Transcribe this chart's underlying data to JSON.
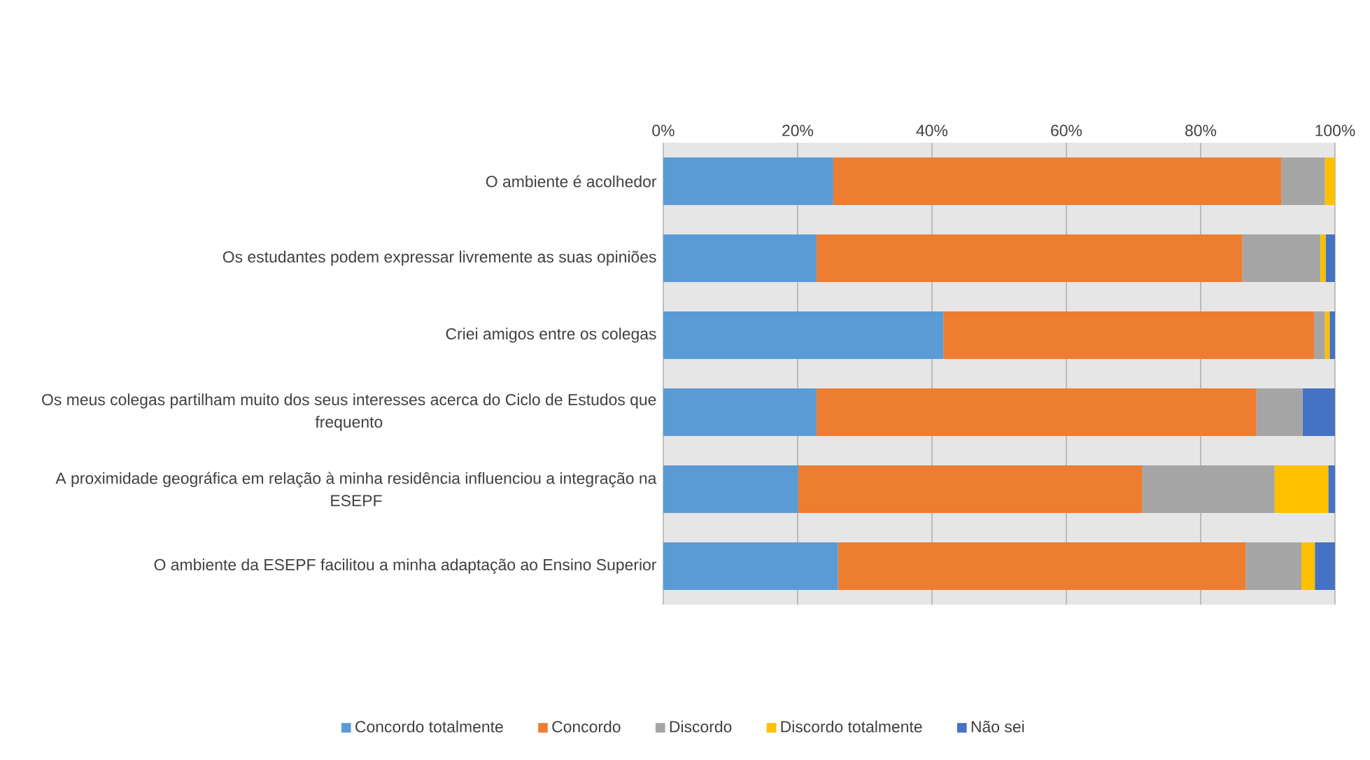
{
  "chart_data": {
    "type": "bar",
    "orientation": "horizontal",
    "stacked": true,
    "categories": [
      "O ambiente é acolhedor",
      "Os estudantes podem expressar livremente as suas opiniões",
      "Criei amigos entre os colegas",
      "Os meus colegas partilham muito dos seus interesses acerca do Ciclo de Estudos que frequento",
      "A proximidade geográfica em relação à minha residência influenciou a integração na ESEPF",
      "O ambiente da ESEPF facilitou a minha adaptação ao Ensino Superior"
    ],
    "series": [
      {
        "name": "Concordo totalmente",
        "color": "#5b9bd5",
        "values": [
          25.3,
          22.8,
          41.7,
          22.8,
          20.1,
          26
        ]
      },
      {
        "name": "Concordo",
        "color": "#ed7d31",
        "values": [
          66.7,
          63.4,
          55.2,
          65.5,
          51.2,
          60.7
        ]
      },
      {
        "name": "Discordo",
        "color": "#a5a5a5",
        "values": [
          6.5,
          11.6,
          1.6,
          6.9,
          19.7,
          8.3
        ]
      },
      {
        "name": "Discordo totalmente",
        "color": "#ffc000",
        "values": [
          1.5,
          0.8,
          0.7,
          0,
          8,
          2
        ]
      },
      {
        "name": "Não sei",
        "color": "#4472c4",
        "values": [
          0,
          1.4,
          0.8,
          4.8,
          1,
          3
        ]
      }
    ],
    "xlim": [
      0,
      100
    ],
    "xticks": [
      {
        "value": 0,
        "label": "0%"
      },
      {
        "value": 20,
        "label": "20%"
      },
      {
        "value": 40,
        "label": "40%"
      },
      {
        "value": 60,
        "label": "60%"
      },
      {
        "value": 80,
        "label": "80%"
      },
      {
        "value": 100,
        "label": "100%"
      }
    ],
    "grid": "x",
    "legend": "bottom"
  }
}
